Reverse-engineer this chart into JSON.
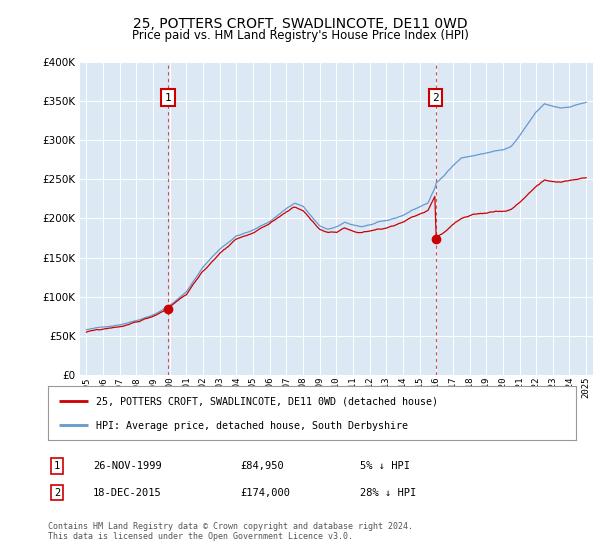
{
  "title": "25, POTTERS CROFT, SWADLINCOTE, DE11 0WD",
  "subtitle": "Price paid vs. HM Land Registry's House Price Index (HPI)",
  "legend_line1": "25, POTTERS CROFT, SWADLINCOTE, DE11 0WD (detached house)",
  "legend_line2": "HPI: Average price, detached house, South Derbyshire",
  "annotation1_label": "1",
  "annotation1_date": "26-NOV-1999",
  "annotation1_price": "£84,950",
  "annotation1_hpi": "5% ↓ HPI",
  "annotation1_year": 1999.9,
  "annotation1_value": 84950,
  "annotation2_label": "2",
  "annotation2_date": "18-DEC-2015",
  "annotation2_price": "£174,000",
  "annotation2_hpi": "28% ↓ HPI",
  "annotation2_year": 2015.96,
  "annotation2_value": 174000,
  "hpi_color": "#6699cc",
  "price_color": "#cc0000",
  "bg_color": "#dce9f5",
  "grid_color": "#ffffff",
  "vline_color": "#cc3333",
  "ylim": [
    0,
    400000
  ],
  "yticks": [
    0,
    50000,
    100000,
    150000,
    200000,
    250000,
    300000,
    350000,
    400000
  ],
  "footer": "Contains HM Land Registry data © Crown copyright and database right 2024.\nThis data is licensed under the Open Government Licence v3.0.",
  "start_year": 1995,
  "end_year": 2025
}
